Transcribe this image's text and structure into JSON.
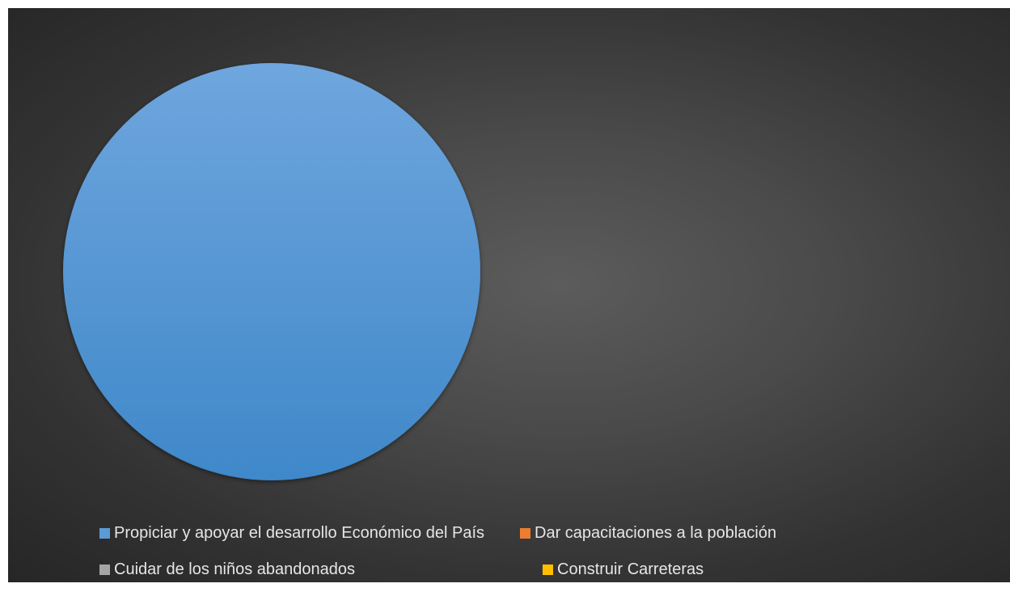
{
  "chart_data": {
    "type": "pie",
    "title": "",
    "categories": [
      "Propiciar y apoyar el desarrollo Económico del País",
      "Dar capacitaciones a la población",
      "Cuidar de los niños abandonados",
      "Construir Carreteras"
    ],
    "values": [
      100,
      0,
      0,
      0
    ],
    "colors": [
      "#5b9bd5",
      "#ed7d31",
      "#a5a5a5",
      "#ffc000"
    ],
    "legend_position": "bottom"
  }
}
